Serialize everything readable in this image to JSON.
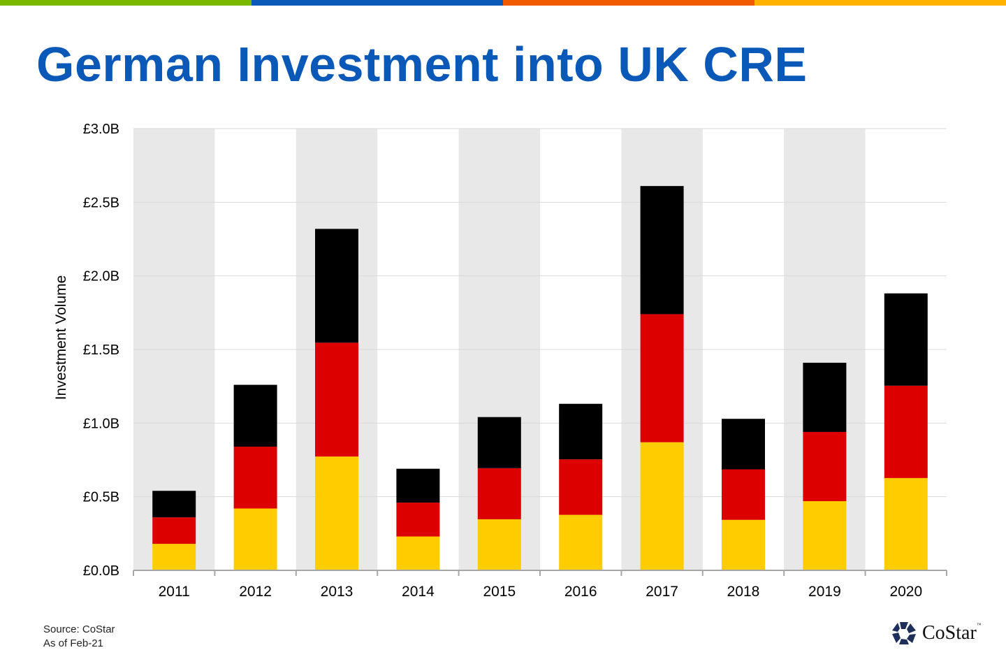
{
  "title": "German Investment into UK CRE",
  "top_bar_colors": [
    "#7ab800",
    "#0a58b8",
    "#f25a00",
    "#ffb300"
  ],
  "source": "Source: CoStar",
  "as_of": "As of Feb-21",
  "logo": {
    "text": "CoStar",
    "tm": "™"
  },
  "chart_data": {
    "type": "bar",
    "stacked": true,
    "ylabel": "Investment Volume",
    "ylim": [
      0,
      3.0
    ],
    "yticks": [
      "£0.0B",
      "£0.5B",
      "£1.0B",
      "£1.5B",
      "£2.0B",
      "£2.5B",
      "£3.0B"
    ],
    "grid": true,
    "categories": [
      "2011",
      "2012",
      "2013",
      "2014",
      "2015",
      "2016",
      "2017",
      "2018",
      "2019",
      "2020"
    ],
    "totals": [
      0.54,
      1.26,
      2.32,
      0.69,
      1.04,
      1.13,
      2.61,
      1.03,
      1.41,
      1.88
    ],
    "series": [
      {
        "color": "#ffcc00",
        "values": [
          0.18,
          0.42,
          0.773,
          0.23,
          0.347,
          0.377,
          0.87,
          0.343,
          0.47,
          0.627
        ]
      },
      {
        "color": "#dd0000",
        "values": [
          0.18,
          0.42,
          0.773,
          0.23,
          0.347,
          0.377,
          0.87,
          0.343,
          0.47,
          0.627
        ]
      },
      {
        "color": "#000000",
        "values": [
          0.18,
          0.42,
          0.773,
          0.23,
          0.347,
          0.377,
          0.87,
          0.343,
          0.47,
          0.627
        ]
      }
    ],
    "band_color": "#e8e8e8"
  }
}
